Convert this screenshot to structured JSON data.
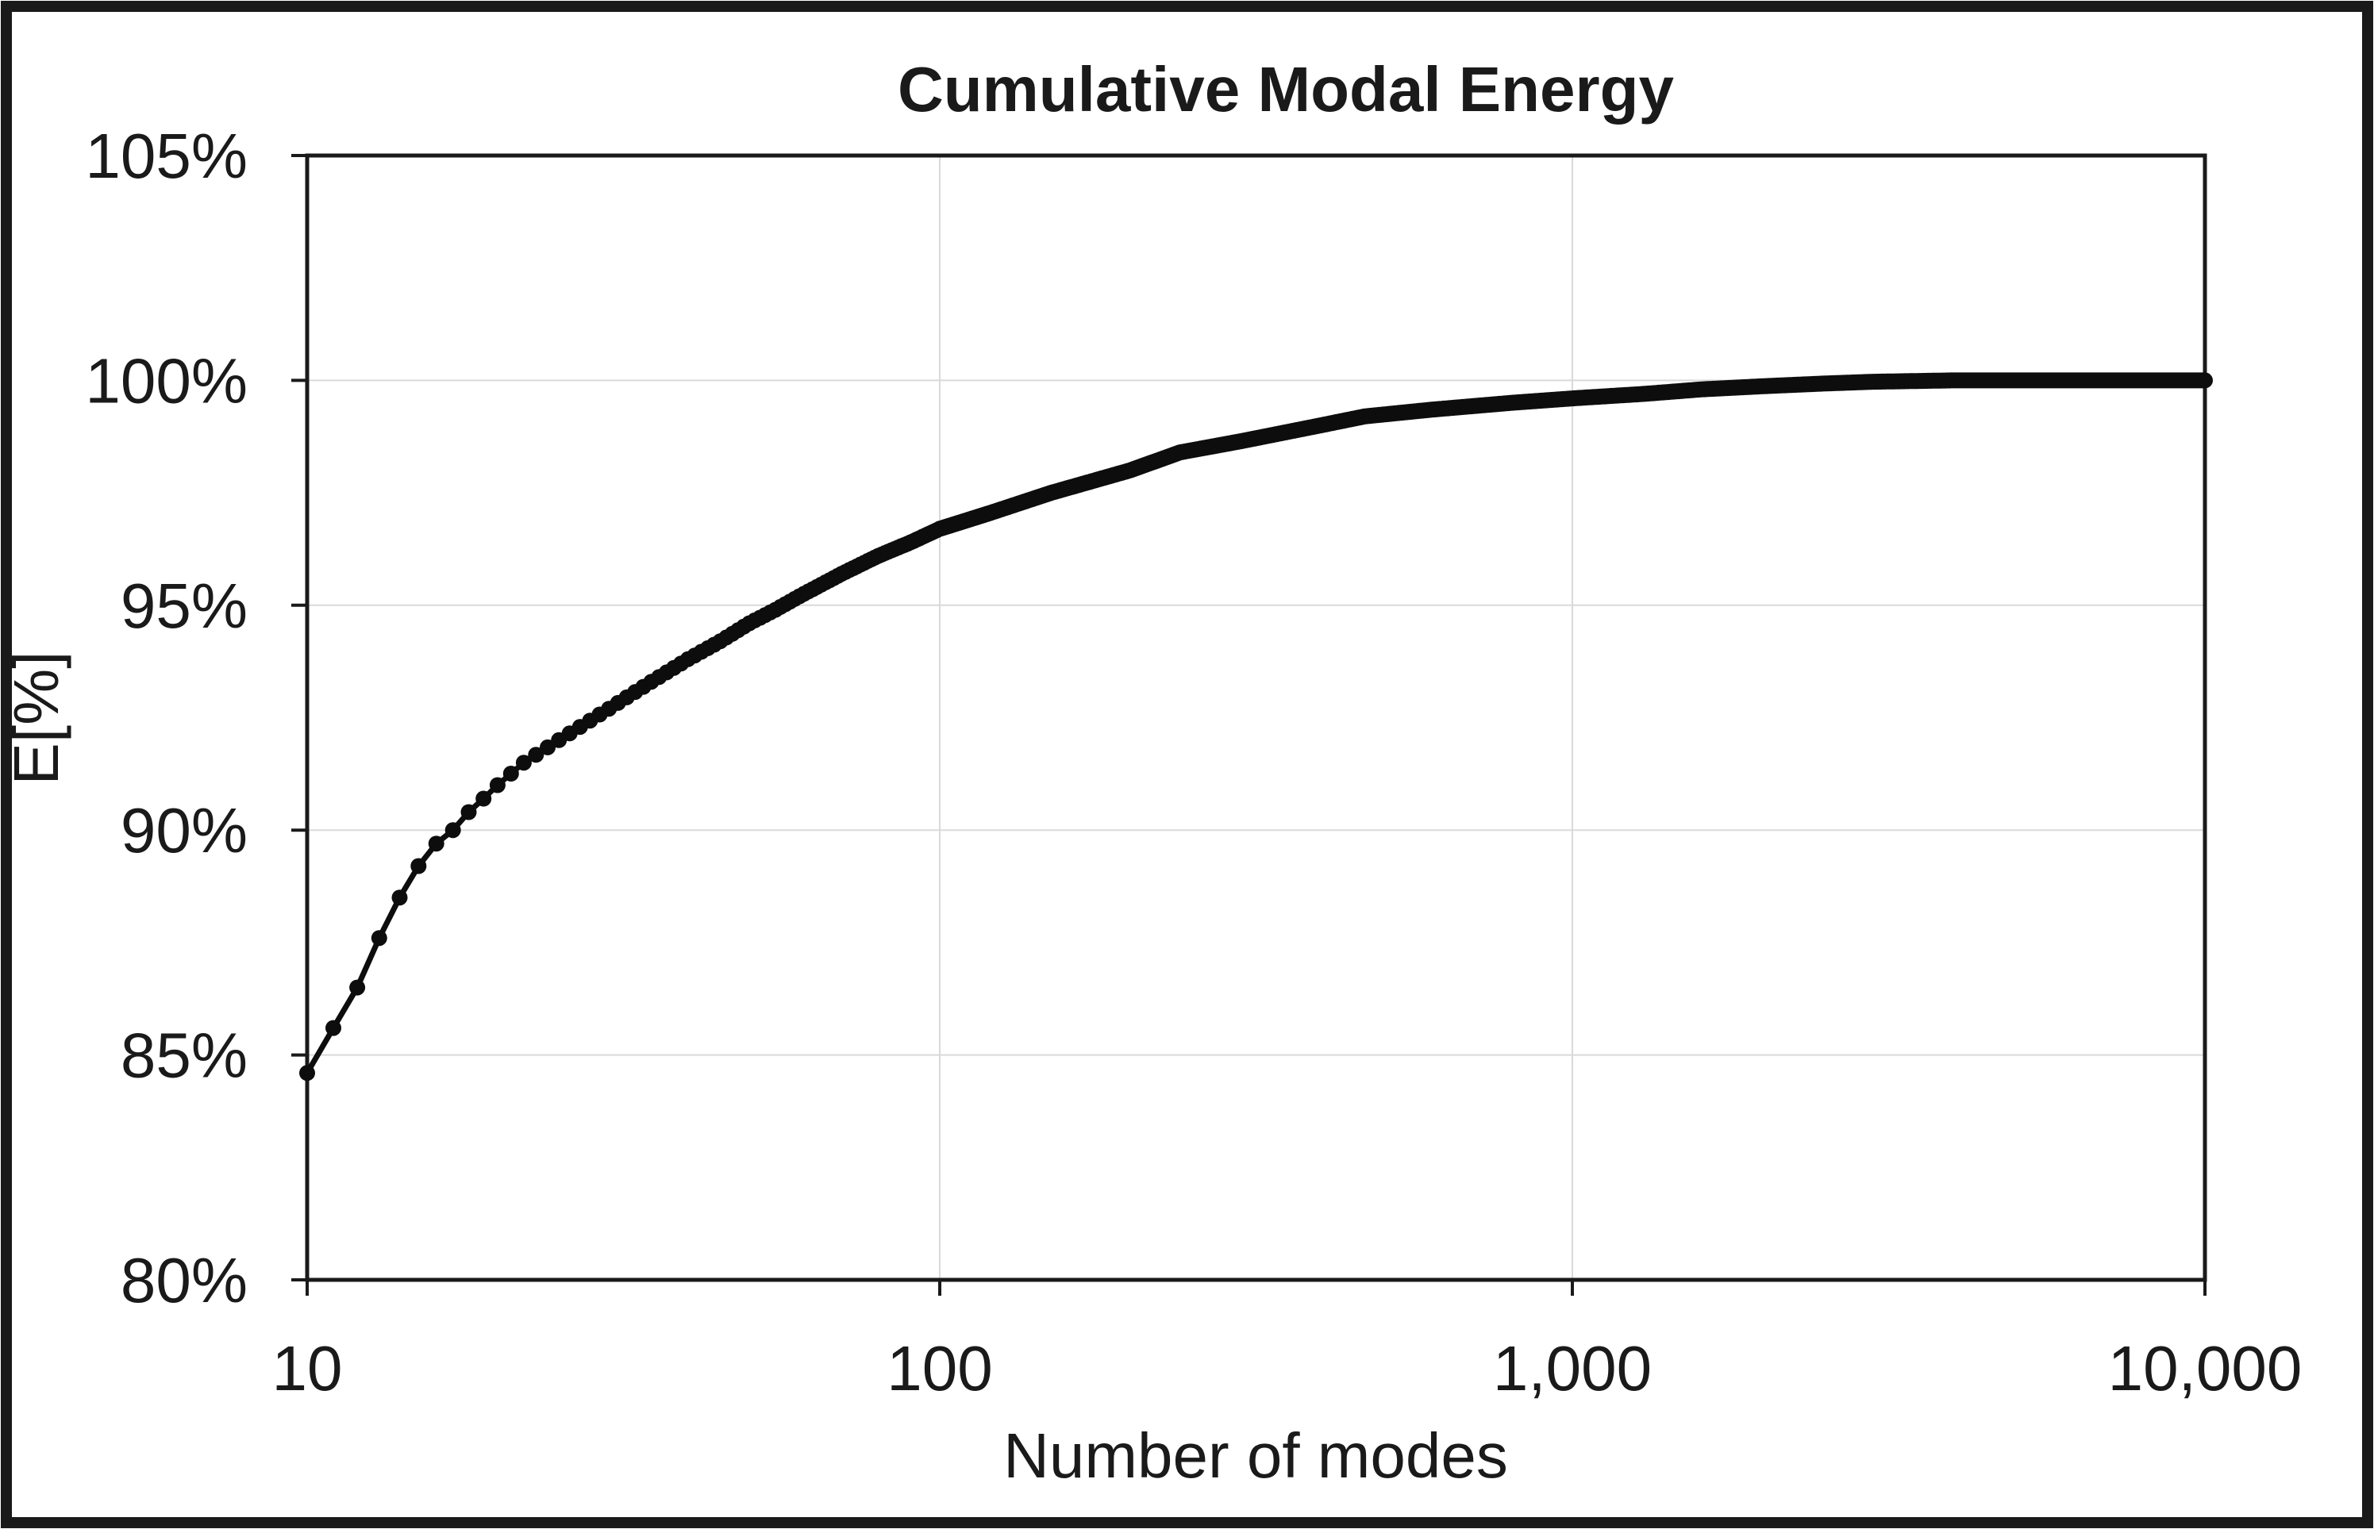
{
  "figure": {
    "background_color": "#ffffff",
    "border_color": "#1a1a1a",
    "gridline_color": "#d9d9d9",
    "axis_color": "#1a1a1a",
    "text_color": "#1a1a1a"
  },
  "chart_data": {
    "type": "line",
    "title": "Cumulative Modal Energy",
    "xlabel": "Number of modes",
    "ylabel": "E[%]",
    "x_scale": "log",
    "xlim": [
      10,
      10000
    ],
    "ylim": [
      80,
      105
    ],
    "grid": true,
    "legend": "none",
    "x_ticks": [
      {
        "value": 10,
        "label": "10"
      },
      {
        "value": 100,
        "label": "100"
      },
      {
        "value": 1000,
        "label": "1,000"
      },
      {
        "value": 10000,
        "label": "10,000"
      }
    ],
    "y_ticks": [
      {
        "value": 80,
        "label": "80%"
      },
      {
        "value": 85,
        "label": "85%"
      },
      {
        "value": 90,
        "label": "90%"
      },
      {
        "value": 95,
        "label": "95%"
      },
      {
        "value": 100,
        "label": "100%"
      },
      {
        "value": 105,
        "label": "105%"
      }
    ],
    "series": [
      {
        "name": "Cumulative modal energy",
        "color": "#0d0d0d",
        "marker": "circle",
        "markers_at_every_integer_mode": true,
        "anchor_points_x_modes": [
          10,
          11,
          12,
          13,
          14,
          15,
          16,
          17,
          18,
          19,
          20,
          22,
          25,
          30,
          35,
          40,
          45,
          50,
          55,
          60,
          70,
          80,
          90,
          100,
          120,
          150,
          200,
          240,
          300,
          400,
          470,
          600,
          800,
          1000,
          1300,
          1600,
          2000,
          2500,
          3000,
          4000,
          6000,
          10000
        ],
        "anchor_points_y_percent": [
          84.6,
          85.6,
          86.5,
          87.6,
          88.5,
          89.2,
          89.7,
          90.0,
          90.4,
          90.7,
          91.0,
          91.5,
          92.0,
          92.7,
          93.3,
          93.8,
          94.2,
          94.6,
          94.9,
          95.2,
          95.7,
          96.1,
          96.4,
          96.7,
          97.05,
          97.5,
          98.0,
          98.4,
          98.65,
          99.0,
          99.2,
          99.35,
          99.5,
          99.6,
          99.7,
          99.8,
          99.87,
          99.93,
          99.97,
          100.0,
          100.0,
          100.0
        ]
      }
    ]
  }
}
